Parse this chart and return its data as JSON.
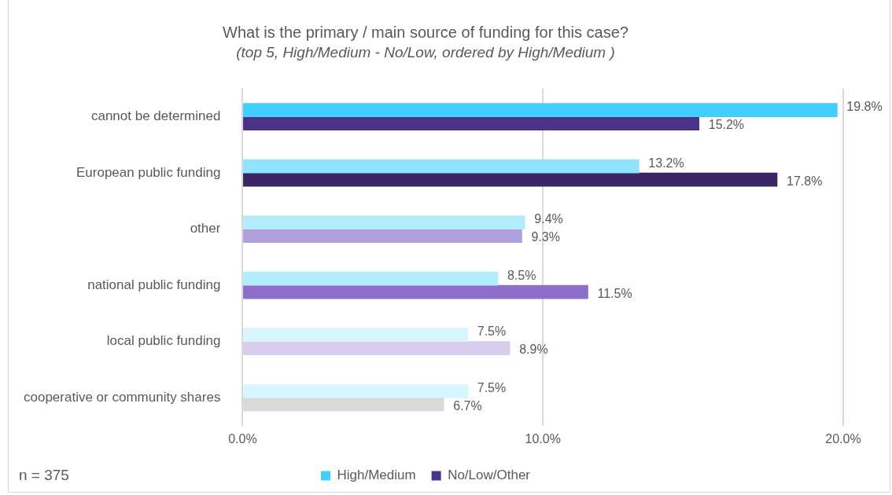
{
  "chart_data": {
    "type": "bar",
    "orientation": "horizontal",
    "title": "What is the primary / main source of funding for this case?",
    "subtitle": "(top 5, High/Medium - No/Low, ordered by High/Medium )",
    "categories": [
      "cannot be determined",
      "European public funding",
      "other",
      "national public funding",
      "local public funding",
      "cooperative or community shares"
    ],
    "series": [
      {
        "name": "High/Medium",
        "color": "#41d0fd",
        "colors": [
          "#41d0fd",
          "#8fe3fd",
          "#b3edfd",
          "#b3edfd",
          "#d9f5fd",
          "#d9f5fd"
        ],
        "values": [
          19.8,
          13.2,
          9.4,
          8.5,
          7.5,
          7.5
        ],
        "value_labels": [
          "19.8%",
          "13.2%",
          "9.4%",
          "8.5%",
          "7.5%",
          "7.5%"
        ]
      },
      {
        "name": "No/Low/Other",
        "color": "#4b3385",
        "colors": [
          "#4b3385",
          "#3a2462",
          "#b19fdc",
          "#8b6fca",
          "#d9cdee",
          "#d9d9d9"
        ],
        "values": [
          15.2,
          17.8,
          9.3,
          11.5,
          8.9,
          6.7
        ],
        "value_labels": [
          "15.2%",
          "17.8%",
          "9.3%",
          "11.5%",
          "8.9%",
          "6.7%"
        ]
      }
    ],
    "xlim": [
      0,
      20
    ],
    "xticks": [
      {
        "value": 0,
        "label": "0.0%"
      },
      {
        "value": 10,
        "label": "10.0%"
      },
      {
        "value": 20,
        "label": "20.0%"
      }
    ],
    "grid": "x",
    "legend": "bottom",
    "annotations": [
      "n = 375"
    ]
  }
}
